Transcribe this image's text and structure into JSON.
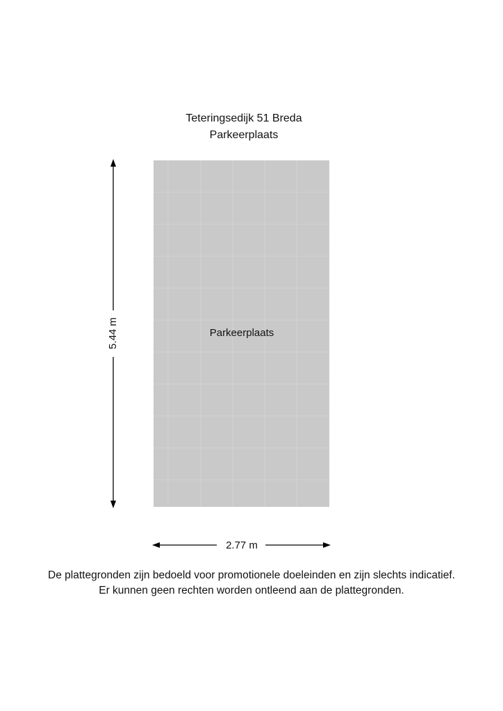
{
  "header": {
    "address": "Teteringsedijk 51 Breda",
    "floor": "Parkeerplaats"
  },
  "rooms": [
    {
      "label": "Parkeerplaats"
    }
  ],
  "dimensions": {
    "height": "5.44 m",
    "width": "2.77 m"
  },
  "footer": {
    "line1": "De plattegronden zijn bedoeld voor promotionele doeleinden en zijn slechts indicatief.",
    "line2": "Er kunnen geen rechten worden ontleend aan de plattegronden."
  }
}
